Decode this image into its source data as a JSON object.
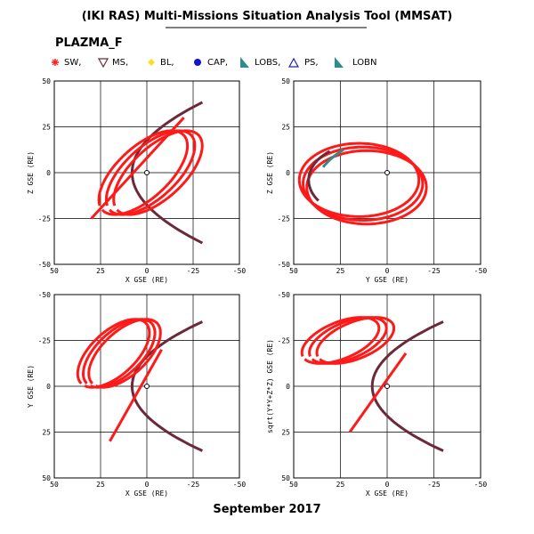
{
  "title": "(IKI RAS) Multi-Missions Situation Analysis Tool (MMSAT)",
  "mission": "PLAZMA_F",
  "footer": "September 2017",
  "colors": {
    "sw": "#ff1a1a",
    "ms": "#6b2a3a",
    "bl": "#ffe01a",
    "cap": "#1414c8",
    "lobs": "#2e8c8c",
    "ps": "#2222aa",
    "lobn": "#2e8c8c"
  },
  "legend": [
    {
      "key": "sw",
      "label": "SW,",
      "icon": "star-icon"
    },
    {
      "key": "ms",
      "label": "MS,",
      "icon": "triangle-down-icon"
    },
    {
      "key": "bl",
      "label": "BL,",
      "icon": "diamond-icon"
    },
    {
      "key": "cap",
      "label": "CAP,",
      "icon": "dot-icon"
    },
    {
      "key": "lobs",
      "label": "LOBS,",
      "icon": "filled-triangle-icon"
    },
    {
      "key": "ps",
      "label": "PS,",
      "icon": "triangle-up-icon"
    },
    {
      "key": "lobn",
      "label": "LOBN",
      "icon": "filled-triangle-icon"
    }
  ],
  "chart_data": [
    {
      "type": "line",
      "panel": "top-left",
      "xlabel": "X GSE (RE)",
      "ylabel": "Z GSE (RE)",
      "xlim": [
        50,
        -50
      ],
      "ylim": [
        -50,
        50
      ],
      "y_inverted": false,
      "xticks": [
        "50",
        "25",
        "0",
        "-25",
        "-50"
      ],
      "yticks": [
        "50",
        "25",
        "0",
        "-25",
        "-50"
      ],
      "grid": true
    },
    {
      "type": "line",
      "panel": "top-right",
      "xlabel": "Y GSE (RE)",
      "ylabel": "Z GSE (RE)",
      "xlim": [
        50,
        -50
      ],
      "ylim": [
        -50,
        50
      ],
      "y_inverted": false,
      "xticks": [
        "50",
        "25",
        "0",
        "-25",
        "-50"
      ],
      "yticks": [
        "50",
        "25",
        "0",
        "-25",
        "-50"
      ],
      "grid": true
    },
    {
      "type": "line",
      "panel": "bottom-left",
      "xlabel": "X GSE (RE)",
      "ylabel": "Y GSE (RE)",
      "xlim": [
        50,
        -50
      ],
      "ylim": [
        50,
        -50
      ],
      "y_inverted": true,
      "xticks": [
        "50",
        "25",
        "0",
        "-25",
        "-50"
      ],
      "yticks": [
        "-50",
        "-25",
        "0",
        "25",
        "50"
      ],
      "grid": true
    },
    {
      "type": "line",
      "panel": "bottom-right",
      "xlabel": "X GSE (RE)",
      "ylabel": "sqrt(Y*Y+Z*Z) GSE (RE)",
      "xlim": [
        50,
        -50
      ],
      "ylim": [
        50,
        -50
      ],
      "y_inverted": true,
      "xticks": [
        "50",
        "25",
        "0",
        "-25",
        "-50"
      ],
      "yticks": [
        "-50",
        "-25",
        "0",
        "25",
        "50"
      ],
      "grid": true
    }
  ]
}
